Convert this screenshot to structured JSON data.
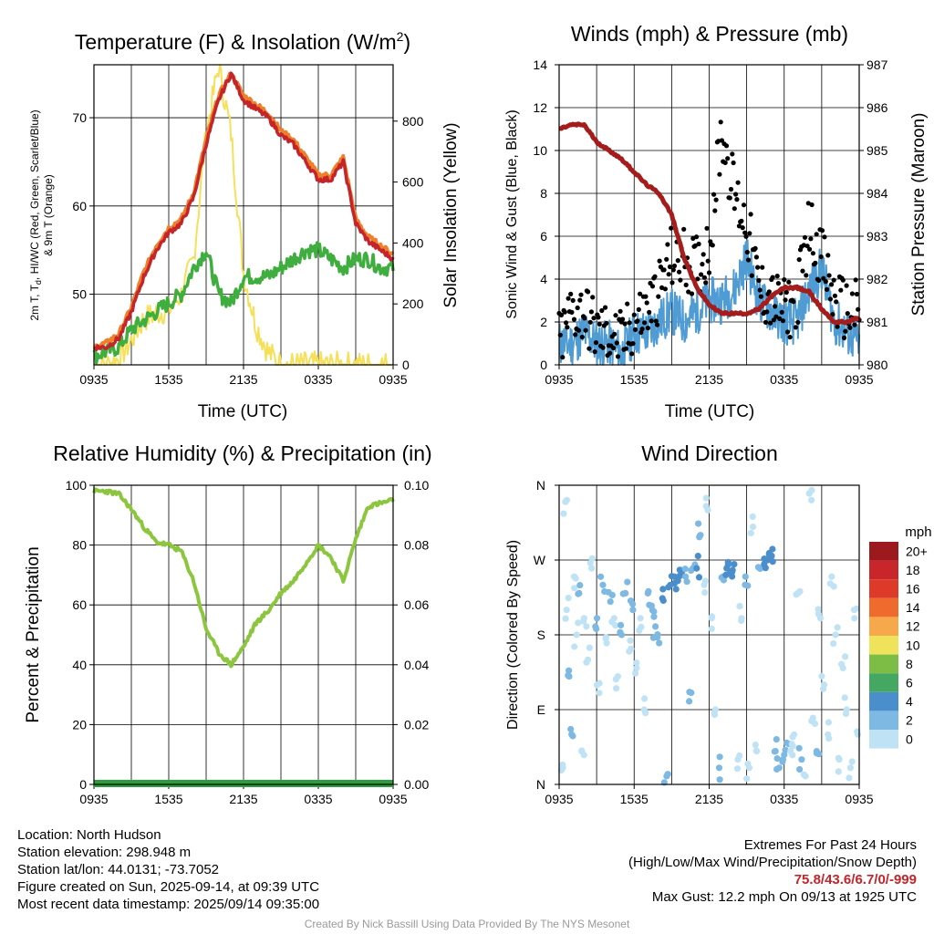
{
  "panels": {
    "temperature": {
      "title": "Temperature (F) & Insolation (W/m",
      "title_sup": "2",
      "title_close": ")",
      "ylabel_left_line1": "2m T, T",
      "ylabel_left_sub": "d",
      "ylabel_left_line1b": ", HI/WC (Red, Green, Scarlet/Blue)",
      "ylabel_left_line2": "& 9m T (Orange)",
      "ylabel_right": "Solar Insolation (Yellow)",
      "xlabel": "Time (UTC)"
    },
    "winds": {
      "title": "Winds (mph) & Pressure (mb)",
      "ylabel_left": "Sonic Wind & Gust (Blue, Black)",
      "ylabel_right": "Station Pressure (Maroon)",
      "xlabel": "Time (UTC)"
    },
    "humidity": {
      "title": "Relative Humidity (%) & Precipitation (in)",
      "ylabel_left": "Percent & Precipitation"
    },
    "direction": {
      "title": "Wind Direction",
      "ylabel_left": "Direction (Colored By Speed)",
      "colorbar_title": "mph"
    }
  },
  "colors": {
    "temp_red": "#c3252a",
    "temp_orange": "#f07f2a",
    "dewpoint_green": "#3fae3f",
    "insolation_yellow": "#f6e05a",
    "wind_blue": "#4f9bd4",
    "gust_black": "#000000",
    "pressure_maroon": "#a51c1c",
    "rh_green": "#8cc63f",
    "precip_green": "#2e9b3e"
  },
  "colorbar": {
    "labels": [
      "20+",
      "18",
      "16",
      "14",
      "12",
      "10",
      "8",
      "6",
      "4",
      "2",
      "0"
    ],
    "colors": [
      "#9c1a1d",
      "#c8262b",
      "#dd3a2a",
      "#ee6a2d",
      "#f7a84a",
      "#f0e35c",
      "#7dbd45",
      "#45a862",
      "#4a8fcb",
      "#7db9e2",
      "#bfe3f5"
    ]
  },
  "chart_data": [
    {
      "type": "line",
      "title": "Temperature (F) & Insolation (W/m2)",
      "xlabel": "Time (UTC)",
      "ylabel": "2m T, Td, HI/WC (Red, Green, Scarlet/Blue) & 9m T (Orange)",
      "y2label": "Solar Insolation (Yellow)",
      "x_ticks": [
        "0935",
        "1535",
        "2135",
        "0335",
        "0935"
      ],
      "hours": [
        0,
        1,
        2,
        3,
        4,
        5,
        6,
        7,
        8,
        9,
        10,
        11,
        12,
        13,
        14,
        15,
        16,
        17,
        18,
        19,
        20,
        21,
        22,
        23,
        24
      ],
      "ylim": [
        42,
        76
      ],
      "y_ticks": [
        50,
        60,
        70
      ],
      "y2lim": [
        0,
        985
      ],
      "y2_ticks": [
        0,
        200,
        400,
        600,
        800
      ],
      "series": [
        {
          "name": "2m T",
          "axis": "left",
          "values": [
            44,
            44,
            45,
            48,
            52,
            55,
            57,
            58,
            61,
            67,
            72,
            75,
            72,
            71,
            70,
            68,
            67,
            65,
            63,
            63,
            65,
            58,
            56,
            55,
            54
          ]
        },
        {
          "name": "9m T",
          "axis": "left",
          "values": [
            44,
            44.5,
            45.5,
            48.5,
            52.5,
            55.5,
            57.5,
            58.5,
            61.5,
            67.5,
            72.5,
            75,
            72.5,
            71.5,
            70.5,
            68.5,
            67.5,
            65.5,
            63.5,
            63.5,
            65.5,
            58.5,
            56.5,
            55.5,
            54.5
          ]
        },
        {
          "name": "Td",
          "axis": "left",
          "values": [
            43,
            43.5,
            44,
            46,
            47,
            48,
            49,
            50,
            53,
            55,
            50,
            49,
            52,
            52,
            52,
            53,
            54,
            55,
            55,
            54,
            53,
            54,
            54,
            53,
            53
          ]
        },
        {
          "name": "Solar Insolation",
          "axis": "right",
          "values": [
            0,
            0,
            20,
            80,
            150,
            170,
            180,
            230,
            350,
            760,
            980,
            760,
            300,
            130,
            40,
            0,
            0,
            0,
            0,
            0,
            0,
            0,
            0,
            0,
            0
          ]
        }
      ]
    },
    {
      "type": "line",
      "title": "Winds (mph) & Pressure (mb)",
      "xlabel": "Time (UTC)",
      "ylabel": "Sonic Wind & Gust (Blue, Black)",
      "y2label": "Station Pressure (Maroon)",
      "x_ticks": [
        "0935",
        "1535",
        "2135",
        "0335",
        "0935"
      ],
      "hours": [
        0,
        1,
        2,
        3,
        4,
        5,
        6,
        7,
        8,
        9,
        10,
        11,
        12,
        13,
        14,
        15,
        16,
        17,
        18,
        19,
        20,
        21,
        22,
        23,
        24
      ],
      "ylim": [
        0,
        14
      ],
      "y_ticks": [
        0,
        2,
        4,
        6,
        8,
        10,
        12,
        14
      ],
      "y2lim": [
        980,
        987
      ],
      "y2_ticks": [
        980,
        981,
        982,
        983,
        984,
        985,
        986,
        987
      ],
      "series": [
        {
          "name": "Sonic Wind",
          "axis": "left",
          "values": [
            1,
            1,
            1.5,
            1,
            1,
            0.5,
            1.5,
            1.5,
            2,
            2.5,
            2,
            2.5,
            3,
            3,
            3.5,
            5,
            3,
            2.5,
            2,
            2,
            3.5,
            4.5,
            2,
            1.5,
            1
          ]
        },
        {
          "name": "Gust",
          "axis": "left",
          "values": [
            1,
            2.5,
            2.5,
            1.5,
            1.5,
            1,
            2,
            2.5,
            3.5,
            5,
            5,
            4.5,
            5.5,
            11,
            8,
            6.5,
            3.5,
            3,
            2.5,
            3,
            6.5,
            5,
            3,
            2.5,
            2.5
          ]
        },
        {
          "name": "Station Pressure",
          "axis": "right",
          "values": [
            985.5,
            985.6,
            985.6,
            985.2,
            985,
            984.8,
            984.5,
            984.2,
            984,
            983.5,
            982.5,
            981.8,
            981.4,
            981.2,
            981.2,
            981.2,
            981.3,
            981.6,
            981.8,
            981.8,
            981.7,
            981.3,
            981,
            981,
            981.1
          ]
        }
      ]
    },
    {
      "type": "line",
      "title": "Relative Humidity (%) & Precipitation (in)",
      "ylabel": "Percent & Precipitation",
      "x_ticks": [
        "0935",
        "1535",
        "2135",
        "0335",
        "0935"
      ],
      "hours": [
        0,
        1,
        2,
        3,
        4,
        5,
        6,
        7,
        8,
        9,
        10,
        11,
        12,
        13,
        14,
        15,
        16,
        17,
        18,
        19,
        20,
        21,
        22,
        23,
        24
      ],
      "ylim": [
        0,
        100
      ],
      "y_ticks": [
        0,
        20,
        40,
        60,
        80,
        100
      ],
      "y2lim": [
        0,
        0.1
      ],
      "y2_ticks": [
        "0.00",
        "0.02",
        "0.04",
        "0.06",
        "0.08",
        "0.10"
      ],
      "series": [
        {
          "name": "Relative Humidity",
          "axis": "left",
          "values": [
            98,
            98,
            97,
            92,
            86,
            81,
            80,
            78,
            68,
            52,
            44,
            40,
            46,
            54,
            58,
            64,
            68,
            74,
            80,
            76,
            68,
            82,
            93,
            94,
            95
          ]
        },
        {
          "name": "Precipitation",
          "axis": "right",
          "values": [
            0,
            0,
            0,
            0,
            0,
            0,
            0,
            0,
            0,
            0,
            0,
            0,
            0,
            0,
            0,
            0,
            0,
            0,
            0,
            0,
            0,
            0,
            0,
            0,
            0
          ]
        }
      ]
    },
    {
      "type": "scatter",
      "title": "Wind Direction",
      "ylabel": "Direction (Colored By Speed)",
      "x_ticks": [
        "0935",
        "1535",
        "2135",
        "0335",
        "0935"
      ],
      "y_ticks": [
        "N",
        "E",
        "S",
        "W",
        "N"
      ],
      "ylim": [
        0,
        360
      ],
      "colorbar_unit": "mph",
      "points": [
        [
          0.3,
          20,
          1
        ],
        [
          0.5,
          340,
          0
        ],
        [
          0.6,
          210,
          1
        ],
        [
          0.8,
          130,
          2
        ],
        [
          1.0,
          60,
          2
        ],
        [
          1.2,
          250,
          1
        ],
        [
          1.4,
          180,
          1
        ],
        [
          1.6,
          230,
          2
        ],
        [
          1.8,
          40,
          1
        ],
        [
          2.0,
          200,
          1
        ],
        [
          2.3,
          150,
          1
        ],
        [
          2.6,
          260,
          0
        ],
        [
          2.9,
          190,
          2
        ],
        [
          3.2,
          110,
          1
        ],
        [
          3.5,
          240,
          2
        ],
        [
          3.8,
          170,
          1
        ],
        [
          4.1,
          220,
          2
        ],
        [
          4.4,
          200,
          1
        ],
        [
          4.7,
          130,
          1
        ],
        [
          5.0,
          180,
          2
        ],
        [
          5.3,
          230,
          2
        ],
        [
          5.6,
          160,
          1
        ],
        [
          5.9,
          210,
          2
        ],
        [
          6.2,
          140,
          1
        ],
        [
          6.5,
          200,
          1
        ],
        [
          6.8,
          90,
          0
        ],
        [
          7.1,
          230,
          3
        ],
        [
          7.4,
          215,
          3
        ],
        [
          7.7,
          190,
          3
        ],
        [
          8.0,
          170,
          2
        ],
        [
          8.3,
          235,
          5
        ],
        [
          8.6,
          10,
          3
        ],
        [
          8.9,
          240,
          4
        ],
        [
          9.2,
          250,
          4
        ],
        [
          9.5,
          245,
          5
        ],
        [
          9.8,
          255,
          5
        ],
        [
          10.1,
          250,
          3
        ],
        [
          10.4,
          100,
          2
        ],
        [
          10.7,
          260,
          3
        ],
        [
          11.0,
          260,
          4
        ],
        [
          11.3,
          300,
          2
        ],
        [
          11.6,
          240,
          1
        ],
        [
          11.9,
          330,
          1
        ],
        [
          12.2,
          200,
          1
        ],
        [
          12.5,
          90,
          1
        ],
        [
          12.8,
          20,
          2
        ],
        [
          13.1,
          250,
          3
        ],
        [
          13.4,
          260,
          4
        ],
        [
          13.7,
          255,
          4
        ],
        [
          14.0,
          265,
          4
        ],
        [
          14.3,
          30,
          1
        ],
        [
          14.6,
          200,
          1
        ],
        [
          14.9,
          250,
          2
        ],
        [
          15.2,
          20,
          1
        ],
        [
          15.5,
          310,
          1
        ],
        [
          15.8,
          40,
          1
        ],
        [
          16.1,
          260,
          3
        ],
        [
          16.4,
          265,
          4
        ],
        [
          16.7,
          270,
          4
        ],
        [
          17.0,
          275,
          4
        ],
        [
          17.3,
          40,
          2
        ],
        [
          17.6,
          20,
          2
        ],
        [
          17.9,
          30,
          2
        ],
        [
          18.2,
          50,
          2
        ],
        [
          18.5,
          40,
          1
        ],
        [
          18.8,
          60,
          1
        ],
        [
          19.1,
          230,
          1
        ],
        [
          19.4,
          30,
          2
        ],
        [
          19.7,
          10,
          1
        ],
        [
          20.0,
          350,
          0
        ],
        [
          20.3,
          80,
          1
        ],
        [
          20.6,
          40,
          2
        ],
        [
          20.9,
          200,
          1
        ],
        [
          21.2,
          120,
          1
        ],
        [
          21.5,
          60,
          1
        ],
        [
          21.8,
          250,
          0
        ],
        [
          22.1,
          180,
          1
        ],
        [
          22.4,
          30,
          1
        ],
        [
          22.7,
          140,
          0
        ],
        [
          23.0,
          90,
          1
        ],
        [
          23.3,
          20,
          1
        ],
        [
          23.6,
          210,
          1
        ],
        [
          23.9,
          60,
          0
        ]
      ]
    }
  ],
  "info_left": {
    "location": "Location: North Hudson",
    "elevation": "Station elevation: 298.948 m",
    "latlon": "Station lat/lon: 44.0131; -73.7052",
    "created": "Figure created on Sun, 2025-09-14, at 09:39 UTC",
    "recent": "Most recent data timestamp: 2025/09/14 09:35:00"
  },
  "info_right": {
    "extremes_title": "Extremes For Past 24 Hours",
    "extremes_legend": "(High/Low/Max Wind/Precipitation/Snow Depth)",
    "extremes_values": "75.8/43.6/6.7/0/-999",
    "max_gust": "Max Gust: 12.2 mph On 09/13 at 1925 UTC"
  },
  "footer": "Created By Nick Bassill Using Data Provided By The NYS Mesonet"
}
